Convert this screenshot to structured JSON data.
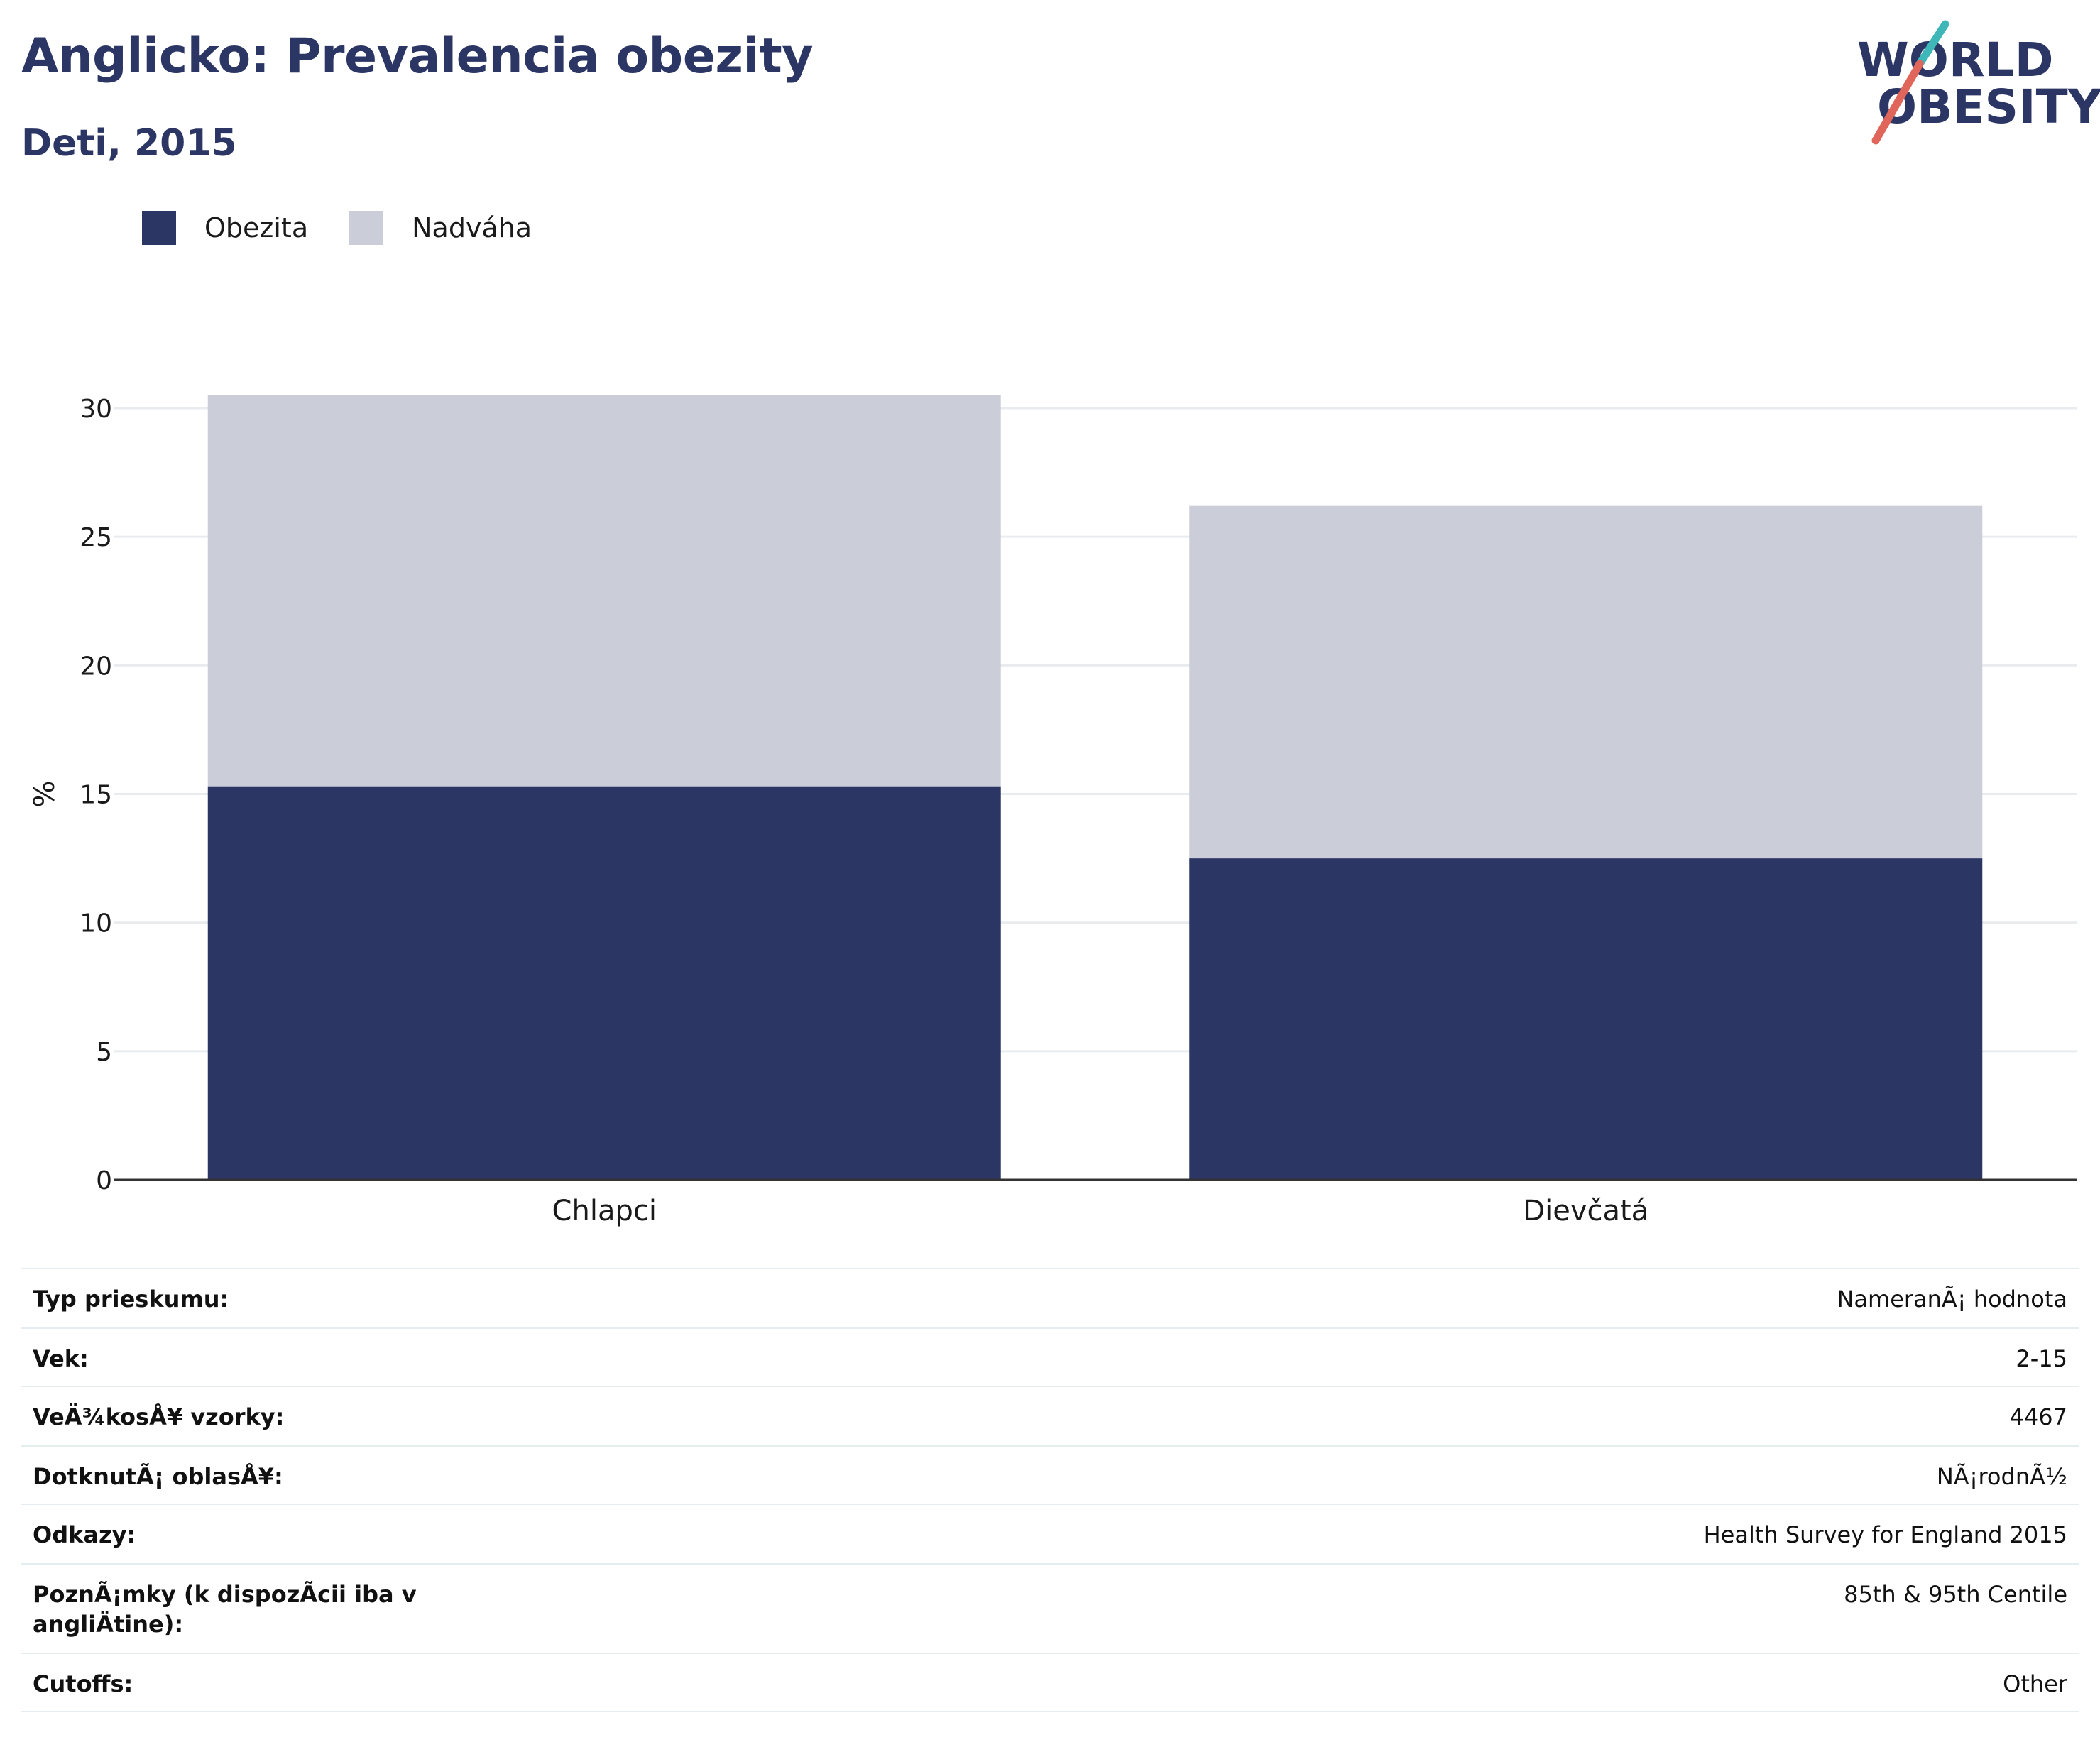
{
  "title": "Anglicko: Prevalencia obezity",
  "subtitle": "Deti, 2015",
  "logo": {
    "line1": "WORLD",
    "line2": "OBESITY",
    "accent_colors": [
      "#3fb6b8",
      "#e0655a"
    ]
  },
  "legend": [
    {
      "label": "Obezita",
      "color": "#2b3664"
    },
    {
      "label": "Nadváha",
      "color": "#cbcdd9"
    }
  ],
  "chart_data": {
    "type": "bar",
    "stacked": true,
    "categories": [
      "Chlapci",
      "Dievčatá"
    ],
    "series": [
      {
        "name": "Obezita",
        "values": [
          15.3,
          12.5
        ],
        "color": "#2b3664"
      },
      {
        "name": "Nadváha",
        "values": [
          15.2,
          13.7
        ],
        "color": "#cbcdd9"
      }
    ],
    "ylabel": "%",
    "ylim": [
      0,
      30
    ],
    "yticks": [
      0,
      5,
      10,
      15,
      20,
      25,
      30
    ],
    "grid": true,
    "legend_position": "top-left"
  },
  "info": [
    {
      "key": "Typ prieskumu:",
      "value": "NameranÃ¡ hodnota"
    },
    {
      "key": "Vek:",
      "value": "2-15"
    },
    {
      "key": "VeÄ¾kosÅ¥ vzorky:",
      "value": "4467"
    },
    {
      "key": "DotknutÃ¡ oblasÅ¥:",
      "value": "NÃ¡rodnÃ½"
    },
    {
      "key": "Odkazy:",
      "value": "Health Survey for England 2015"
    },
    {
      "key": "PoznÃ¡mky (k dispozÃ­cii iba v angliÄtine):",
      "value": "85th & 95th Centile"
    },
    {
      "key": "Cutoffs:",
      "value": "Other"
    }
  ]
}
